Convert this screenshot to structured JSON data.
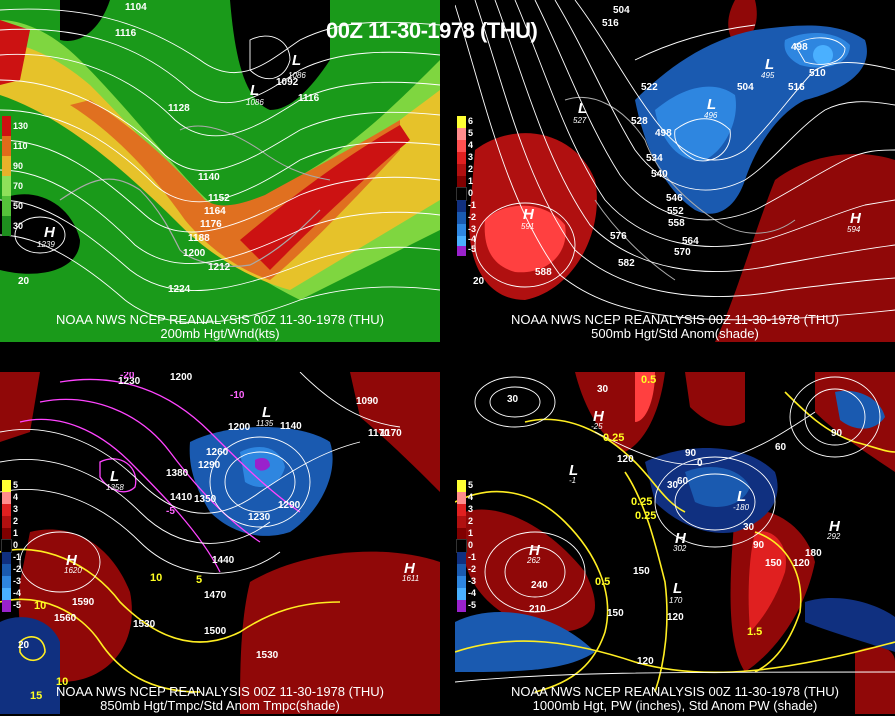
{
  "title": "00Z 11-30-1978 (THU)",
  "panels": [
    {
      "caption1": "NOAA NWS NCEP REANALYSIS 00Z 11-30-1978 (THU)",
      "caption2": "200mb Hgt/Wnd(kts)",
      "legend": [
        {
          "label": "130",
          "color": "#cc1010"
        },
        {
          "label": "110",
          "color": "#e06b1a"
        },
        {
          "label": "90",
          "color": "#e8b22a"
        },
        {
          "label": "70",
          "color": "#8fe05a"
        },
        {
          "label": "50",
          "color": "#55c23a"
        },
        {
          "label": "30",
          "color": "#1e8f1e"
        }
      ],
      "contour_labels": [
        "1104",
        "1116",
        "1128",
        "1140",
        "1152",
        "1164",
        "1176",
        "1188",
        "1200",
        "1212",
        "1224",
        "1092",
        "1116",
        "20"
      ],
      "centers": [
        {
          "type": "L",
          "value": "1086"
        },
        {
          "type": "L",
          "value": "1086"
        },
        {
          "type": "H",
          "value": "1239"
        }
      ]
    },
    {
      "caption1": "NOAA NWS NCEP REANALYSIS 00Z 11-30-1978 (THU)",
      "caption2": "500mb Hgt/Std Anom(shade)",
      "legend": [
        {
          "label": "6",
          "color": "#ffff33"
        },
        {
          "label": "5",
          "color": "#ff8c8c"
        },
        {
          "label": "4",
          "color": "#ff5050"
        },
        {
          "label": "3",
          "color": "#e02020"
        },
        {
          "label": "2",
          "color": "#b01010"
        },
        {
          "label": "1",
          "color": "#800000"
        },
        {
          "label": "0",
          "color": "#000000"
        },
        {
          "label": "-1",
          "color": "#103080"
        },
        {
          "label": "-2",
          "color": "#1a5ab0"
        },
        {
          "label": "-3",
          "color": "#2e86e0"
        },
        {
          "label": "-4",
          "color": "#4ab0ff"
        },
        {
          "label": "-5",
          "color": "#9a22cc"
        }
      ],
      "contour_labels": [
        "504",
        "516",
        "510",
        "522",
        "528",
        "534",
        "540",
        "546",
        "552",
        "558",
        "564",
        "570",
        "576",
        "582",
        "588",
        "20",
        "498",
        "504",
        "516"
      ],
      "centers": [
        {
          "type": "L",
          "value": "498"
        },
        {
          "type": "L",
          "value": "495"
        },
        {
          "type": "L",
          "value": "527"
        },
        {
          "type": "L",
          "value": "496"
        },
        {
          "type": "H",
          "value": "591"
        },
        {
          "type": "H",
          "value": "594"
        }
      ]
    },
    {
      "caption1": "NOAA NWS NCEP REANALYSIS 00Z 11-30-1978 (THU)",
      "caption2": "850mb Hgt/Tmpc/Std Anom Tmpc(shade)",
      "legend": [
        {
          "label": "5",
          "color": "#ffff33"
        },
        {
          "label": "4",
          "color": "#ff8c8c"
        },
        {
          "label": "3",
          "color": "#e02020"
        },
        {
          "label": "2",
          "color": "#b01010"
        },
        {
          "label": "1",
          "color": "#800000"
        },
        {
          "label": "0",
          "color": "#000000"
        },
        {
          "label": "-1",
          "color": "#103080"
        },
        {
          "label": "-2",
          "color": "#1a5ab0"
        },
        {
          "label": "-3",
          "color": "#2e86e0"
        },
        {
          "label": "-4",
          "color": "#4ab0ff"
        },
        {
          "label": "-5",
          "color": "#9a22cc"
        }
      ],
      "contour_labels": [
        "1230",
        "1200",
        "1170",
        "1200",
        "1260",
        "1290",
        "1380",
        "1410",
        "1350",
        "1230",
        "1440",
        "1470",
        "1500",
        "1530",
        "1560",
        "1590",
        "1530",
        "1140",
        "1170",
        "1090",
        "20",
        "1290"
      ],
      "temp_labels": [
        "10",
        "5",
        "10",
        "10",
        "15",
        "-20",
        "-10",
        "-5"
      ],
      "centers": [
        {
          "type": "L",
          "value": "1135"
        },
        {
          "type": "L",
          "value": "1358"
        },
        {
          "type": "H",
          "value": "1620"
        },
        {
          "type": "H",
          "value": "1611"
        }
      ]
    },
    {
      "caption1": "NOAA NWS NCEP REANALYSIS 00Z 11-30-1978 (THU)",
      "caption2": "1000mb Hgt, PW (inches), Std Anom PW (shade)",
      "legend": [
        {
          "label": "5",
          "color": "#ffff33"
        },
        {
          "label": "4",
          "color": "#ff8c8c"
        },
        {
          "label": "3",
          "color": "#e02020"
        },
        {
          "label": "2",
          "color": "#b01010"
        },
        {
          "label": "1",
          "color": "#800000"
        },
        {
          "label": "0",
          "color": "#000000"
        },
        {
          "label": "-1",
          "color": "#103080"
        },
        {
          "label": "-2",
          "color": "#1a5ab0"
        },
        {
          "label": "-3",
          "color": "#2e86e0"
        },
        {
          "label": "-4",
          "color": "#4ab0ff"
        },
        {
          "label": "-5",
          "color": "#9a22cc"
        }
      ],
      "contour_labels": [
        "30",
        "30",
        "90",
        "120",
        "60",
        "0",
        "30",
        "30",
        "60",
        "90",
        "120",
        "150",
        "180",
        "240",
        "210",
        "150",
        "120",
        "120",
        "150",
        "90"
      ],
      "pw_labels": [
        "0.25",
        "0.25",
        "0.25",
        "0.5",
        "1.5",
        "0.5"
      ],
      "centers": [
        {
          "type": "L",
          "value": "-25"
        },
        {
          "type": "L",
          "value": "-1"
        },
        {
          "type": "L",
          "value": "-180"
        },
        {
          "type": "H",
          "value": "262"
        },
        {
          "type": "H",
          "value": "302"
        },
        {
          "type": "H",
          "value": "292"
        },
        {
          "type": "L",
          "value": "170"
        }
      ]
    }
  ]
}
